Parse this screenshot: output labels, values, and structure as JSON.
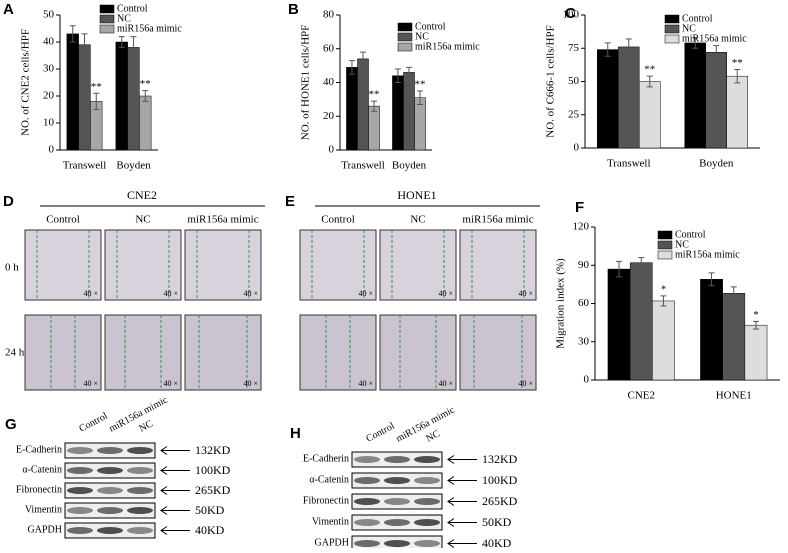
{
  "chart_data": [
    {
      "type": "bar",
      "label": "A",
      "y_label": "NO. of CNE2 cells/HPF",
      "categories": [
        "Transwell",
        "Boyden"
      ],
      "ylim": [
        0,
        50
      ],
      "yticks": [
        0,
        10,
        20,
        30,
        40,
        50
      ],
      "series": [
        {
          "name": "Control",
          "color": "#000000",
          "values": [
            43,
            40
          ],
          "errors": [
            3,
            2
          ]
        },
        {
          "name": "NC",
          "color": "#555555",
          "values": [
            39,
            38
          ],
          "errors": [
            4,
            4
          ]
        },
        {
          "name": "miR156a mimic",
          "color": "#a6a6a6",
          "values": [
            18,
            20
          ],
          "errors": [
            3,
            2
          ],
          "marks": [
            "**",
            "**"
          ]
        }
      ]
    },
    {
      "type": "bar",
      "label": "B",
      "y_label": "NO. of HONE1 cells/HPF",
      "categories": [
        "Transwell",
        "Boyden"
      ],
      "ylim": [
        0,
        80
      ],
      "yticks": [
        0,
        20,
        40,
        60,
        80
      ],
      "series": [
        {
          "name": "Control",
          "color": "#000000",
          "values": [
            49,
            44
          ],
          "errors": [
            4,
            4
          ]
        },
        {
          "name": "NC",
          "color": "#555555",
          "values": [
            54,
            46
          ],
          "errors": [
            4,
            3
          ]
        },
        {
          "name": "miR156a mimic",
          "color": "#a6a6a6",
          "values": [
            26,
            31
          ],
          "errors": [
            3,
            4
          ],
          "marks": [
            "**",
            "**"
          ]
        }
      ]
    },
    {
      "type": "bar",
      "label": "C",
      "y_label": "NO. of C666-1 cells/HPF",
      "categories": [
        "Transwell",
        "Boyden"
      ],
      "ylim": [
        0,
        100
      ],
      "yticks": [
        0,
        25,
        50,
        75,
        100
      ],
      "series": [
        {
          "name": "Control",
          "color": "#000000",
          "values": [
            74,
            79
          ],
          "errors": [
            5,
            4
          ]
        },
        {
          "name": "NC",
          "color": "#555555",
          "values": [
            76,
            72
          ],
          "errors": [
            6,
            5
          ]
        },
        {
          "name": "miR156a mimic",
          "color": "#dddddd",
          "values": [
            50,
            54
          ],
          "errors": [
            4,
            5
          ],
          "marks": [
            "**",
            "**"
          ]
        }
      ]
    },
    {
      "type": "bar",
      "label": "F",
      "y_label": "Migration index (%)",
      "categories": [
        "CNE2",
        "HONE1"
      ],
      "ylim": [
        0,
        120
      ],
      "yticks": [
        0,
        30,
        60,
        90,
        120
      ],
      "series": [
        {
          "name": "Control",
          "color": "#000000",
          "values": [
            87,
            79
          ],
          "errors": [
            6,
            5
          ]
        },
        {
          "name": "NC",
          "color": "#555555",
          "values": [
            92,
            68
          ],
          "errors": [
            4,
            5
          ]
        },
        {
          "name": "miR156a mimic",
          "color": "#dddddd",
          "values": [
            62,
            43
          ],
          "errors": [
            4,
            3
          ],
          "marks": [
            "*",
            "*"
          ]
        }
      ]
    }
  ],
  "images": [
    {
      "label": "D",
      "title": "CNE2",
      "columns": [
        "Control",
        "NC",
        "miR156a mimic"
      ],
      "rows": [
        "0 h",
        "24 h"
      ],
      "scale_label": "40 ×"
    },
    {
      "label": "E",
      "title": "HONE1",
      "columns": [
        "Control",
        "NC",
        "miR156a mimic"
      ],
      "rows": [],
      "scale_label": "40 ×"
    }
  ],
  "blots": [
    {
      "label": "G",
      "lanes": [
        "Control",
        "miR156a mimic",
        "NC"
      ],
      "proteins": [
        "E-Cadherin",
        "α-Catenin",
        "Fibronectin",
        "Vimentin",
        "GAPDH"
      ],
      "sizes": [
        "132KD",
        "100KD",
        "265KD",
        "50KD",
        "40KD"
      ]
    },
    {
      "label": "H",
      "lanes": [
        "Control",
        "miR156a mimic",
        "NC"
      ],
      "proteins": [
        "E-Cadherin",
        "α-Catenin",
        "Fibronectin",
        "Vimentin",
        "GAPDH"
      ],
      "sizes": [
        "132KD",
        "100KD",
        "265KD",
        "50KD",
        "40KD"
      ]
    }
  ]
}
